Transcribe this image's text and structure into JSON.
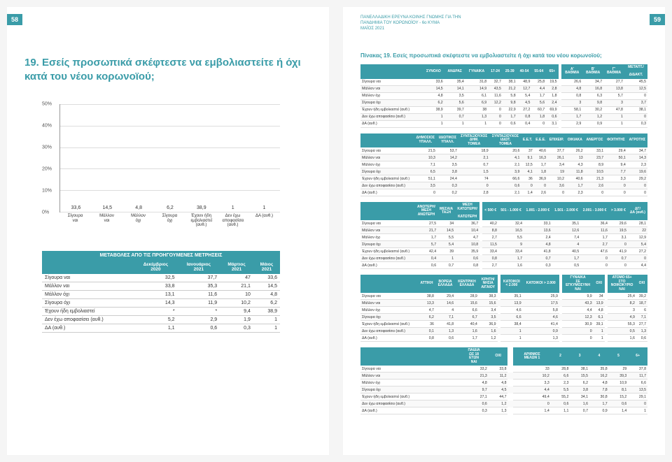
{
  "page_left_num": "58",
  "page_right_num": "59",
  "survey_header": {
    "line1": "ΠΑΝΕΛΛΑΔΙΚΗ ΕΡΕΥΝΑ ΚΟΙΝΗΣ ΓΝΩΜΗΣ ΓΙΑ ΤΗΝ",
    "line2": "ΠΑΝΔΗΜΙΑ ΤΟΥ ΚΟΡΩΝΟΪΟΥ - 6ο ΚΥΜΑ",
    "line3": "ΜΑΪΟΣ 2021"
  },
  "question": "19. Εσείς προσωπικά σκέφτεστε να εμβολιαστείτε ή όχι κατά του νέου κορωνοϊού;",
  "chart": {
    "ymax": 50,
    "ystep": 10,
    "bar_color": "#3a9ca8",
    "categories": [
      "Σίγουρα ναι",
      "Μάλλον ναι",
      "Μάλλον όχι",
      "Σίγουρα όχι",
      "Έχουν ήδη εμβολιαστεί (αυθ.)",
      "Δεν έχω αποφασίσει (αυθ.)",
      "ΔΑ (αυθ.)"
    ],
    "values": [
      33.6,
      14.5,
      4.8,
      6.2,
      38.9,
      1,
      1
    ]
  },
  "changes": {
    "title": "ΜΕΤΑΒΟΛΕΣ ΑΠΟ ΤΙΣ ΠΡΟΗΓΟΥΜΕΝΕΣ ΜΕΤΡΗΣΕΙΣ",
    "cols": [
      "Δεκέμβριος 2020",
      "Ιανουάριος 2021",
      "Μάρτιος 2021",
      "Μάιος 2021"
    ],
    "rows": [
      {
        "label": "Σίγουρα ναι",
        "vals": [
          "32,5",
          "37,7",
          "47",
          "33,6"
        ]
      },
      {
        "label": "Μάλλον ναι",
        "vals": [
          "33,8",
          "35,3",
          "21,1",
          "14,5"
        ]
      },
      {
        "label": "Μάλλον όχι",
        "vals": [
          "13,1",
          "11,6",
          "10",
          "4,8"
        ]
      },
      {
        "label": "Σίγουρα όχι",
        "vals": [
          "14,3",
          "11,9",
          "10,2",
          "6,2"
        ]
      },
      {
        "label": "Έχουν ήδη εμβολιαστεί",
        "vals": [
          "*",
          "*",
          "9,4",
          "38,9"
        ]
      },
      {
        "label": "Δεν έχω αποφασίσει (αυθ.)",
        "vals": [
          "5,2",
          "2,9",
          "1,9",
          "1"
        ]
      },
      {
        "label": "ΔΑ (αυθ.)",
        "vals": [
          "1,1",
          "0,6",
          "0,3",
          "1"
        ]
      }
    ]
  },
  "right_title": "Πίνακας 19. Εσείς προσωπικά σκέφτεστε να εμβολιαστείτε ή όχι κατά του νέου κορωνοϊού;",
  "row_labels": [
    "Σίγουρα ναι",
    "Μάλλον ναι",
    "Μάλλον όχι",
    "Σίγουρα όχι",
    "Έχουν ήδη εμβολιαστεί (αυθ.)",
    "Δεν έχω αποφασίσει (αυθ.)",
    "ΔΑ (αυθ.)"
  ],
  "tables": [
    {
      "headers": [
        "ΣΥΝΟΛΟ",
        "ΑΝΔΡΑΣ",
        "ΓΥΝΑΙΚΑ",
        "17-24",
        "25-39",
        "40-54",
        "55-64",
        "65+",
        "",
        "Α' ΒΑΘΜΙΑ",
        "Β' ΒΑΘΜΙΑ",
        "Γ' ΒΑΘΜΙΑ",
        "ΜΕΤΑΠΤ./ ΔΙΔΑΚΤ."
      ],
      "data": [
        [
          "33,6",
          "35,4",
          "31,8",
          "32,7",
          "38,1",
          "48,9",
          "25,8",
          "19,5",
          "",
          "26,6",
          "34,7",
          "27,7",
          "45,5"
        ],
        [
          "14,5",
          "14,1",
          "14,9",
          "43,5",
          "21,2",
          "12,7",
          "4,4",
          "2,8",
          "",
          "4,8",
          "16,8",
          "13,8",
          "12,5"
        ],
        [
          "4,8",
          "3,5",
          "6,1",
          "11,6",
          "5,8",
          "5,4",
          "1,7",
          "1,8",
          "",
          "0,8",
          "6,3",
          "5,7",
          "0"
        ],
        [
          "6,2",
          "5,6",
          "6,9",
          "12,2",
          "9,8",
          "4,5",
          "5,6",
          "2,4",
          "",
          "3",
          "9,8",
          "3",
          "3,7"
        ],
        [
          "38,9",
          "39,7",
          "38",
          "0",
          "22,9",
          "27,2",
          "60,7",
          "69,9",
          "",
          "58,1",
          "30,2",
          "47,8",
          "38,1"
        ],
        [
          "1",
          "0,7",
          "1,3",
          "0",
          "1,7",
          "0,8",
          "1,8",
          "0,6",
          "",
          "1,7",
          "1,2",
          "1",
          "0"
        ],
        [
          "1",
          "1",
          "1",
          "0",
          "0,6",
          "0,4",
          "0",
          "3,1",
          "",
          "2,9",
          "0,9",
          "1",
          "0,3"
        ]
      ]
    },
    {
      "headers": [
        "ΔΗΜΟΣΙΟΣ ΥΠΑΛΛ.",
        "ΙΔΙΩΤΙΚΟΣ ΥΠΑΛΛ.",
        "ΣΥΝΤΑΞΙΟΥΧΟΣ ΔΗΜ. ΤΟΜΕΑ",
        "ΣΥΝΤΑΞΙΟΥΧΟΣ ΙΔΙΩΤ. ΤΟΜΕΑ",
        "Ε.Ε.Τ.",
        "Ε.Ε.Ε.",
        "ΕΠΙΧΕΙΡ.",
        "ΟΙΚΙΑΚΑ",
        "ΑΝΕΡΓΟΣ",
        "ΦΟΙΤΗΤΗΣ",
        "ΑΓΡΟΤΗΣ"
      ],
      "data": [
        [
          "21,5",
          "53,7",
          "18,9",
          "20,6",
          "37",
          "40,6",
          "37,7",
          "26,2",
          "33,1",
          "29,4",
          "34,7"
        ],
        [
          "10,3",
          "14,2",
          "2,1",
          "4,1",
          "9,1",
          "16,3",
          "26,1",
          "13",
          "23,7",
          "50,1",
          "14,3"
        ],
        [
          "7,1",
          "3,5",
          "0,7",
          "2,1",
          "12,5",
          "1,7",
          "3,4",
          "4,3",
          "8,9",
          "9,4",
          "2,3"
        ],
        [
          "6,5",
          "3,8",
          "1,5",
          "3,9",
          "4,1",
          "1,8",
          "19",
          "11,8",
          "10,5",
          "7,7",
          "19,6"
        ],
        [
          "51,1",
          "24,4",
          "74",
          "66,6",
          "36",
          "36,9",
          "10,2",
          "40,6",
          "21,3",
          "3,3",
          "29,2"
        ],
        [
          "3,5",
          "0,3",
          "0",
          "0,6",
          "0",
          "0",
          "3,6",
          "1,7",
          "2,6",
          "0",
          "0"
        ],
        [
          "0",
          "0,2",
          "2,8",
          "2,1",
          "1,4",
          "2,6",
          "0",
          "2,3",
          "0",
          "0",
          "0"
        ]
      ]
    },
    {
      "headers": [
        "ΑΝΩΤΕΡΗ/ΜΕΣΗ ΑΝΩΤΕΡΗ",
        "ΜΕΣΑΙΑ ΤΑΞΗ",
        "ΜΕΣΗ ΚΑΤΩΤΕΡΗ/ ΚΑΤΩΤΕΡΗ",
        "",
        "< 500 €",
        "501 - 1.000 €",
        "1.001 - 2.000 €",
        "1.501 - 2.000 €",
        "2.001 - 3.000 €",
        "> 3.000 €",
        "ΔΓ/ΔΑ (αυθ.)"
      ],
      "data": [
        [
          "27,5",
          "34",
          "36,7",
          "",
          "40,2",
          "32,4",
          "33,1",
          "35,1",
          "36,4",
          "29,6",
          "28,1"
        ],
        [
          "21,7",
          "14,5",
          "10,4",
          "",
          "8,8",
          "16,5",
          "13,6",
          "12,6",
          "11,6",
          "19,5",
          "22"
        ],
        [
          "1,7",
          "5,5",
          "4,7",
          "",
          "2,7",
          "5,5",
          "2,4",
          "7,4",
          "1,7",
          "3,1",
          "12,9"
        ],
        [
          "5,7",
          "5,4",
          "10,8",
          "",
          "11,5",
          "9",
          "4,8",
          "4",
          "2,7",
          "0",
          "5,4"
        ],
        [
          "42,4",
          "39",
          "35,9",
          "",
          "33,4",
          "33,4",
          "41,8",
          "40,5",
          "47,6",
          "41,9",
          "27,2"
        ],
        [
          "0,4",
          "1",
          "0,6",
          "",
          "0,8",
          "1,7",
          "0,7",
          "1,7",
          "0",
          "0,7",
          "0"
        ],
        [
          "0,6",
          "0,7",
          "0,8",
          "",
          "2,7",
          "1,6",
          "0,3",
          "0,5",
          "0",
          "0",
          "4,4"
        ]
      ]
    },
    {
      "headers": [
        "ΑΤΤΙΚΗ",
        "ΒΟΡΕΙΑ ΕΛΛΑΔΑ",
        "ΚΕΝΤΡΙΚΗ ΕΛΛΑΔΑ",
        "ΚΡΗΤΗ/ΝΗΣΙΑ ΑΙΓΑΙΟΥ",
        "",
        "ΚΑΤΟΙΚΟΙ < 2.000",
        "ΚΑΤΟΙΚΟΙ > 2.000",
        "",
        "ΓΥΝΑΙΚΑ ΣΕ ΕΓΚΥΜΟΣΥΝΗ ΝΑΙ",
        "ΟΧΙ",
        "",
        "ΑΤΟΜΟ 65+ ΣΤΟ ΝΟΙΚΟΚΥΡΙΟ ΝΑΙ",
        "ΟΧΙ"
      ],
      "data": [
        [
          "38,8",
          "29,4",
          "28,9",
          "38,3",
          "",
          "35,1",
          "25,9",
          "",
          "9,9",
          "34",
          "",
          "25,4",
          "39,2"
        ],
        [
          "13,3",
          "14,6",
          "15,6",
          "15,6",
          "",
          "13,9",
          "17,5",
          "",
          "43,3",
          "13,9",
          "",
          "8,2",
          "18,7"
        ],
        [
          "4,7",
          "4",
          "6,6",
          "3,4",
          "",
          "4,6",
          "5,8",
          "",
          "4,4",
          "4,8",
          "",
          "3",
          "6"
        ],
        [
          "6,2",
          "7,1",
          "6,7",
          "3,5",
          "",
          "6,6",
          "4,6",
          "",
          "12,3",
          "6,1",
          "",
          "4,9",
          "7,1"
        ],
        [
          "36",
          "41,8",
          "40,4",
          "36,9",
          "",
          "38,4",
          "41,4",
          "",
          "30,9",
          "39,1",
          "",
          "55,3",
          "27,7"
        ],
        [
          "0,1",
          "1,3",
          "1,6",
          "1,6",
          "",
          "1",
          "0,9",
          "",
          "0",
          "1",
          "",
          "0,5",
          "1,3"
        ],
        [
          "0,8",
          "0,6",
          "1,7",
          "1,2",
          "",
          "1",
          "1,3",
          "",
          "0",
          "1",
          "",
          "1,6",
          "0,6"
        ]
      ]
    },
    {
      "headers": [
        "ΠΑΙΔΙΑ ΩΣ 18 ΕΤΩΝ ΝΑΙ",
        "ΟΧΙ",
        "",
        "ΑΡΙΘΜΟΣ ΜΕΛΩΝ 1",
        "2",
        "3",
        "4",
        "5",
        "6+"
      ],
      "data": [
        [
          "33,2",
          "33,8",
          "",
          "33",
          "28,8",
          "38,1",
          "35,8",
          "29",
          "37,8"
        ],
        [
          "21,3",
          "11,2",
          "",
          "10,2",
          "6,6",
          "15,5",
          "16,2",
          "39,3",
          "11,7"
        ],
        [
          "4,8",
          "4,8",
          "",
          "3,3",
          "2,3",
          "6,2",
          "4,8",
          "10,9",
          "6,6"
        ],
        [
          "9,7",
          "4,5",
          "",
          "4,4",
          "5,5",
          "3,8",
          "7,8",
          "8,1",
          "13,5"
        ],
        [
          "27,1",
          "44,7",
          "",
          "49,4",
          "55,2",
          "34,1",
          "30,8",
          "15,2",
          "29,1"
        ],
        [
          "0,6",
          "1,2",
          "",
          "0",
          "0,6",
          "1,6",
          "1,7",
          "0,6",
          "0"
        ],
        [
          "0,3",
          "1,3",
          "",
          "1,4",
          "1,1",
          "0,7",
          "0,9",
          "1,4",
          "1"
        ]
      ]
    }
  ]
}
